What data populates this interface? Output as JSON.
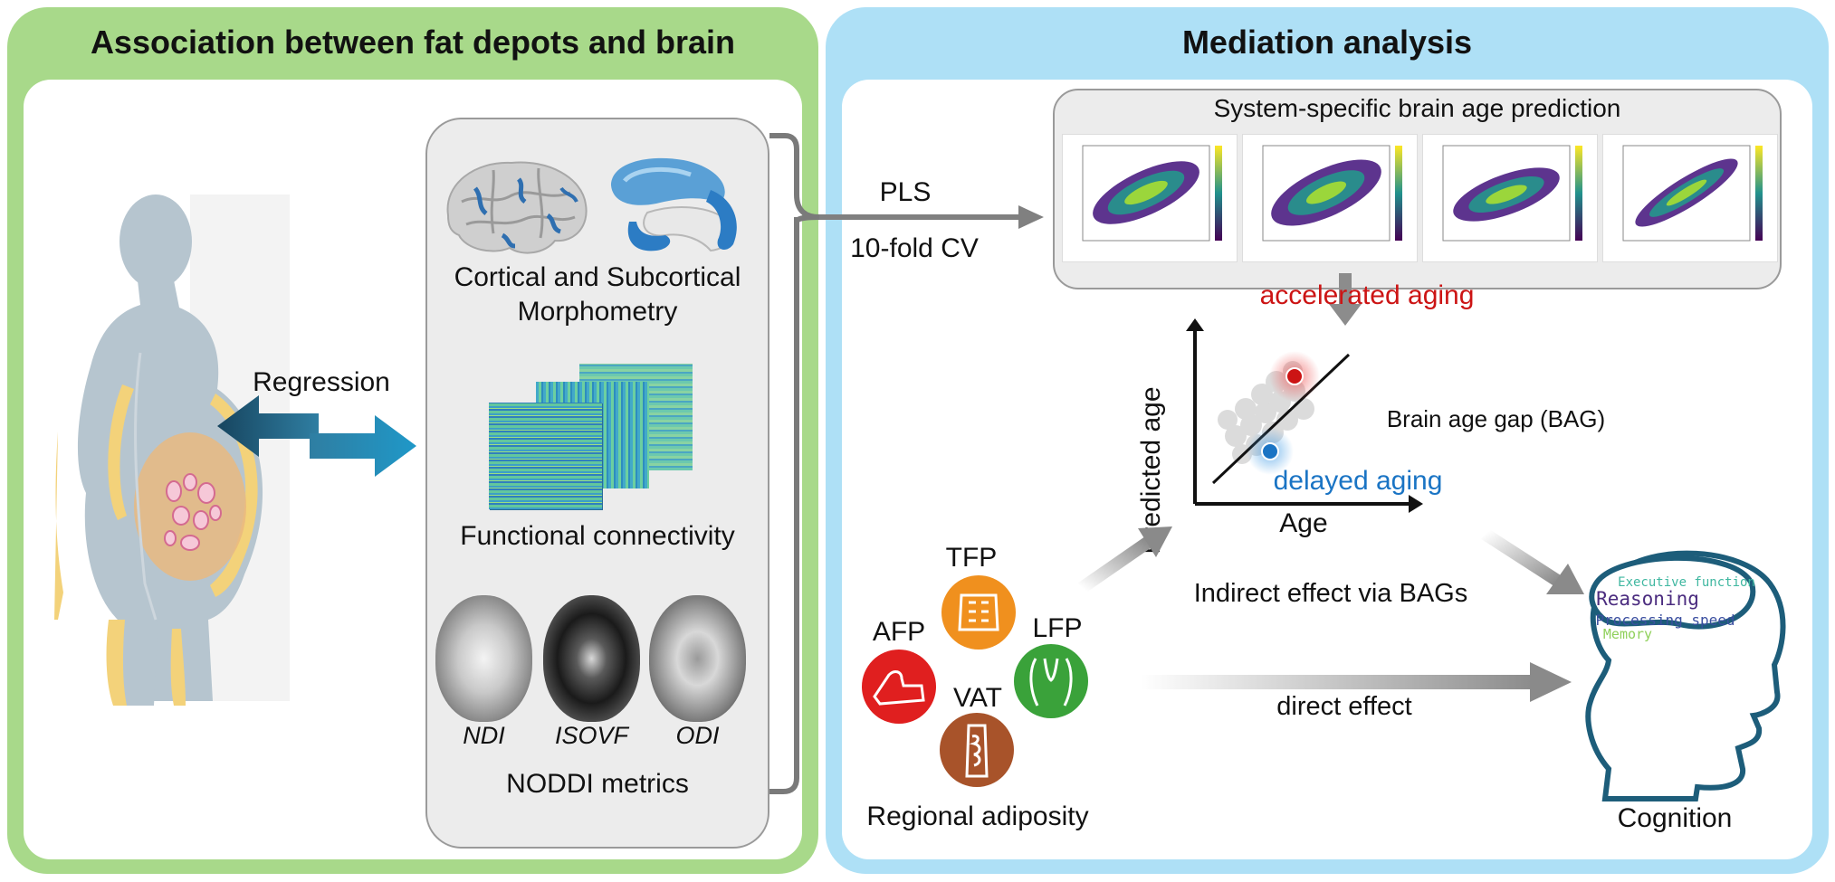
{
  "left_panel": {
    "title": "Association between fat depots and brain",
    "regression_label": "Regression",
    "modalities": {
      "morphometry_line1": "Cortical and Subcortical",
      "morphometry_line2": "Morphometry",
      "connectivity": "Functional connectivity",
      "noddi": {
        "ndi": "NDI",
        "isovf": "ISOVF",
        "odi": "ODI",
        "title": "NODDI metrics"
      }
    }
  },
  "right_panel": {
    "title": "Mediation analysis",
    "pls_label": "PLS",
    "cv_label": "10-fold CV",
    "brain_age_title": "System-specific brain age prediction",
    "bag_plot": {
      "y_label": "Predicted age",
      "x_label": "Age",
      "accelerated": "accelerated aging",
      "delayed": "delayed aging",
      "gap_label": "Brain age gap (BAG)"
    },
    "adiposity": {
      "depots": [
        {
          "abbr": "TFP",
          "color": "#f0901e"
        },
        {
          "abbr": "AFP",
          "color": "#e01f1f"
        },
        {
          "abbr": "LFP",
          "color": "#3aa23a"
        },
        {
          "abbr": "VAT",
          "color": "#a8532a"
        }
      ],
      "caption": "Regional adiposity"
    },
    "indirect_effect": "Indirect effect via BAGs",
    "direct_effect": "direct effect",
    "cognition": {
      "label": "Cognition",
      "words": [
        "Executive function",
        "Reasoning",
        "Processing speed",
        "Memory"
      ],
      "word_colors": [
        "#3fb7a0",
        "#4b2c7f",
        "#3b4fa0",
        "#8fd05a"
      ]
    }
  },
  "colors": {
    "left_frame": "#a8d98a",
    "right_frame": "#aee0f6",
    "arrow_gray": "#808080",
    "accelerated": "#cc1414",
    "delayed": "#1a74c4"
  }
}
